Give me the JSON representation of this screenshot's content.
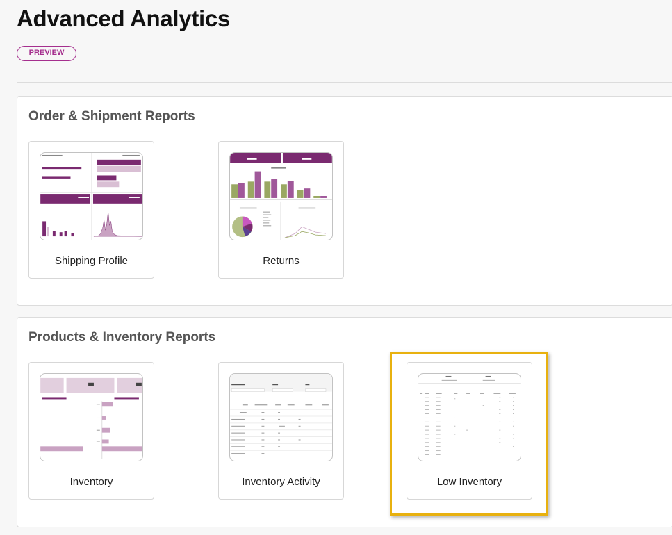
{
  "header": {
    "title": "Advanced Analytics",
    "badge": "PREVIEW"
  },
  "sections": [
    {
      "title": "Order & Shipment Reports",
      "cards": [
        {
          "label": "Shipping Profile"
        },
        {
          "label": "Returns"
        }
      ]
    },
    {
      "title": "Products & Inventory Reports",
      "cards": [
        {
          "label": "Inventory"
        },
        {
          "label": "Inventory Activity"
        },
        {
          "label": "Low Inventory"
        }
      ]
    }
  ],
  "colors": {
    "brand_purple": "#7a2a70",
    "light_purple": "#c9a2c2",
    "olive": "#9aa863",
    "badge": "#a52f8e",
    "highlight": "#e8b10f"
  }
}
